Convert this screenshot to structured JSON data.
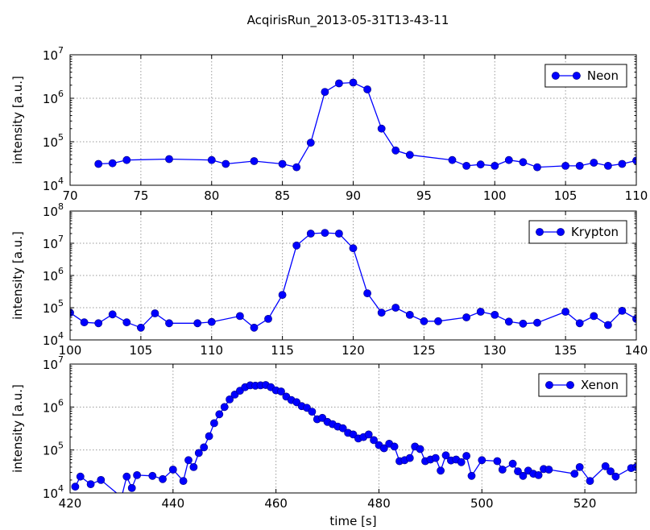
{
  "figure": {
    "title": "AcqirisRun_2013-05-31T13-43-11"
  },
  "colors": {
    "series": "#0000ff",
    "grid": "#9a9a9a",
    "frame": "#000000"
  },
  "chart_data": [
    {
      "type": "line",
      "log_y": true,
      "grid": true,
      "legend_position": "top-right",
      "series": [
        {
          "name": "Neon",
          "x": [
            72,
            73,
            74,
            77,
            80,
            81,
            83,
            85,
            86,
            87,
            88,
            89,
            90,
            91,
            92,
            93,
            94,
            97,
            98,
            99,
            100,
            101,
            102,
            103,
            105,
            106,
            107,
            108,
            109,
            110
          ],
          "y": [
            31000,
            32000,
            38000,
            40000,
            38000,
            31000,
            36000,
            31000,
            26000,
            95000,
            1400000,
            2200000,
            2300000,
            1600000,
            200000,
            63000,
            50000,
            38000,
            28000,
            30000,
            28000,
            38000,
            34000,
            26000,
            28000,
            28000,
            33000,
            28000,
            31000,
            37000
          ]
        }
      ],
      "xlim": [
        70,
        110
      ],
      "ylim": [
        10000,
        10000000
      ],
      "xticks": [
        "70",
        "75",
        "80",
        "85",
        "90",
        "95",
        "100",
        "105",
        "110"
      ],
      "yticks": [
        "10^4",
        "10^5",
        "10^6",
        "10^7"
      ],
      "xlabel": "",
      "ylabel": "intensity [a.u.]"
    },
    {
      "type": "line",
      "log_y": true,
      "grid": true,
      "legend_position": "top-right",
      "series": [
        {
          "name": "Krypton",
          "x": [
            100,
            101,
            102,
            103,
            104,
            105,
            106,
            107,
            109,
            110,
            112,
            113,
            114,
            115,
            116,
            117,
            118,
            119,
            120,
            121,
            122,
            123,
            124,
            125,
            126,
            128,
            129,
            130,
            131,
            132,
            133,
            135,
            136,
            137,
            138,
            139,
            140
          ],
          "y": [
            70000,
            35000,
            33000,
            62000,
            35000,
            24000,
            67000,
            33000,
            33000,
            36000,
            55000,
            24000,
            45000,
            250000,
            8500000,
            20000000,
            21000000,
            20000000,
            7000000,
            280000,
            70000,
            100000,
            60000,
            38000,
            38000,
            50000,
            75000,
            60000,
            37000,
            32000,
            34000,
            75000,
            33000,
            55000,
            29000,
            80000,
            45000
          ]
        }
      ],
      "xlim": [
        100,
        140
      ],
      "ylim": [
        10000,
        100000000
      ],
      "xticks": [
        "100",
        "105",
        "110",
        "115",
        "120",
        "125",
        "130",
        "135",
        "140"
      ],
      "yticks": [
        "10^4",
        "10^5",
        "10^6",
        "10^7",
        "10^8"
      ],
      "xlabel": "",
      "ylabel": "intensity [a.u.]"
    },
    {
      "type": "line",
      "log_y": true,
      "grid": true,
      "legend_position": "top-right",
      "series": [
        {
          "name": "Xenon",
          "x": [
            421,
            422,
            424,
            426,
            430,
            431,
            432,
            433,
            436,
            438,
            440,
            442,
            443,
            444,
            445,
            446,
            447,
            448,
            449,
            450,
            451,
            452,
            453,
            454,
            455,
            456,
            457,
            458,
            459,
            460,
            461,
            462,
            463,
            464,
            465,
            466,
            467,
            468,
            469,
            470,
            471,
            472,
            473,
            474,
            475,
            476,
            477,
            478,
            479,
            480,
            481,
            482,
            483,
            484,
            485,
            486,
            487,
            488,
            489,
            490,
            491,
            492,
            493,
            494,
            495,
            496,
            497,
            498,
            500,
            503,
            504,
            506,
            507,
            508,
            509,
            510,
            511,
            512,
            513,
            518,
            519,
            521,
            524,
            525,
            526,
            529,
            530
          ],
          "y": [
            14000,
            24000,
            16000,
            20000,
            8000,
            24000,
            13000,
            26000,
            25000,
            21000,
            35000,
            19000,
            58000,
            40000,
            85000,
            115000,
            210000,
            420000,
            680000,
            1000000,
            1500000,
            1950000,
            2400000,
            2900000,
            3200000,
            3150000,
            3200000,
            3250000,
            2900000,
            2450000,
            2300000,
            1750000,
            1450000,
            1300000,
            1050000,
            960000,
            780000,
            520000,
            560000,
            450000,
            400000,
            350000,
            320000,
            250000,
            230000,
            185000,
            200000,
            230000,
            170000,
            130000,
            110000,
            140000,
            120000,
            55000,
            58000,
            65000,
            120000,
            105000,
            55000,
            60000,
            65000,
            33000,
            75000,
            57000,
            60000,
            52000,
            73000,
            25000,
            58000,
            55000,
            35000,
            48000,
            32000,
            25000,
            33000,
            28000,
            26000,
            36000,
            35000,
            28000,
            40000,
            19000,
            42000,
            32000,
            24000,
            38000,
            40000
          ]
        }
      ],
      "xlim": [
        420,
        530
      ],
      "ylim": [
        10000,
        10000000
      ],
      "xticks": [
        "420",
        "440",
        "460",
        "480",
        "500",
        "520"
      ],
      "yticks": [
        "10^4",
        "10^5",
        "10^6",
        "10^7"
      ],
      "xlabel": "time [s]",
      "ylabel": "intensity [a.u.]"
    }
  ]
}
